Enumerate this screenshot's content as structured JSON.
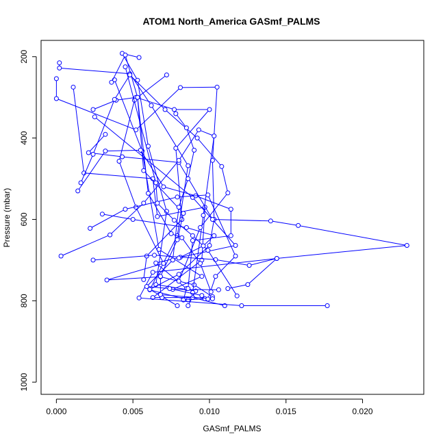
{
  "chart_data": {
    "type": "line",
    "title": "ATOM1 North_America GASmf_PALMS",
    "xlabel": "GASmf_PALMS",
    "ylabel": "Pressure (mbar)",
    "xlim": [
      -0.001,
      0.024
    ],
    "ylim": [
      1030,
      160
    ],
    "y_reversed": true,
    "x_ticks": [
      0.0,
      0.005,
      0.01,
      0.015,
      0.02
    ],
    "x_tick_labels": [
      "0.000",
      "0.005",
      "0.010",
      "0.015",
      "0.020"
    ],
    "y_ticks": [
      200,
      400,
      600,
      800,
      1000
    ],
    "y_tick_labels": [
      "200",
      "400",
      "600",
      "800",
      "1000"
    ],
    "grid": false,
    "series_color": "#0000ff",
    "marker": "open-circle",
    "series": [
      {
        "values": [
          [
            0.0002,
            215
          ],
          [
            0.0002,
            228
          ],
          [
            0.0048,
            242
          ],
          [
            0.0062,
            320
          ],
          [
            0.0086,
            468
          ],
          [
            0.0079,
            640
          ],
          [
            0.0061,
            773
          ],
          [
            0.0086,
            798
          ]
        ]
      },
      {
        "values": [
          [
            0.0054,
            202
          ],
          [
            0.0043,
            192
          ],
          [
            0.0053,
            258
          ],
          [
            0.006,
            420
          ],
          [
            0.0072,
            580
          ],
          [
            0.0065,
            760
          ],
          [
            0.0091,
            776
          ],
          [
            0.0086,
            812
          ]
        ]
      },
      {
        "values": [
          [
            0.0,
            254
          ],
          [
            0.0,
            303
          ],
          [
            0.0052,
            380
          ],
          [
            0.0081,
            276
          ],
          [
            0.0105,
            275
          ],
          [
            0.0102,
            455
          ],
          [
            0.0103,
            600
          ],
          [
            0.01,
            664
          ],
          [
            0.008,
            735
          ],
          [
            0.0061,
            772
          ],
          [
            0.0079,
            812
          ]
        ]
      },
      {
        "values": [
          [
            0.0011,
            275
          ],
          [
            0.0018,
            486
          ],
          [
            0.0063,
            500
          ],
          [
            0.0066,
            593
          ],
          [
            0.0097,
            570
          ],
          [
            0.0095,
            700
          ],
          [
            0.0063,
            792
          ],
          [
            0.0069,
            792
          ],
          [
            0.0089,
            792
          ],
          [
            0.011,
            812
          ]
        ]
      },
      {
        "values": [
          [
            0.0024,
            330
          ],
          [
            0.0039,
            307
          ],
          [
            0.0052,
            300
          ],
          [
            0.0077,
            330
          ],
          [
            0.01,
            330
          ],
          [
            0.0078,
            425
          ],
          [
            0.0082,
            600
          ],
          [
            0.0059,
            690
          ],
          [
            0.0057,
            748
          ]
        ]
      },
      {
        "values": [
          [
            0.0025,
            348
          ],
          [
            0.0089,
            546
          ],
          [
            0.0117,
            664
          ],
          [
            0.0081,
            693
          ],
          [
            0.0065,
            707
          ],
          [
            0.0085,
            770
          ],
          [
            0.0083,
            798
          ],
          [
            0.0097,
            795
          ]
        ]
      },
      {
        "values": [
          [
            0.0032,
            391
          ],
          [
            0.0021,
            436
          ],
          [
            0.0043,
            446
          ],
          [
            0.008,
            460
          ],
          [
            0.0102,
            600
          ],
          [
            0.014,
            604
          ],
          [
            0.0158,
            615
          ],
          [
            0.0229,
            664
          ],
          [
            0.0144,
            696
          ],
          [
            0.0063,
            730
          ],
          [
            0.0054,
            793
          ],
          [
            0.0121,
            812
          ],
          [
            0.0177,
            812
          ]
        ]
      },
      {
        "values": [
          [
            0.0038,
            257
          ],
          [
            0.0056,
            432
          ],
          [
            0.0067,
            674
          ],
          [
            0.0095,
            740
          ],
          [
            0.0076,
            772
          ],
          [
            0.0106,
            773
          ]
        ]
      },
      {
        "values": [
          [
            0.0051,
            307
          ],
          [
            0.0041,
            457
          ],
          [
            0.0052,
            570
          ],
          [
            0.007,
            708
          ],
          [
            0.0033,
            749
          ],
          [
            0.0068,
            741
          ],
          [
            0.009,
            761
          ],
          [
            0.0102,
            790
          ]
        ]
      },
      {
        "values": [
          [
            0.0072,
            245
          ],
          [
            0.0053,
            300
          ],
          [
            0.0057,
            480
          ],
          [
            0.0083,
            585
          ],
          [
            0.0079,
            650
          ],
          [
            0.0068,
            740
          ],
          [
            0.0068,
            785
          ],
          [
            0.0102,
            795
          ]
        ]
      },
      {
        "values": [
          [
            0.0003,
            690
          ],
          [
            0.0035,
            638
          ],
          [
            0.0057,
            560
          ],
          [
            0.008,
            455
          ],
          [
            0.0093,
            380
          ],
          [
            0.0103,
            395
          ],
          [
            0.0096,
            590
          ],
          [
            0.0089,
            780
          ]
        ]
      },
      {
        "values": [
          [
            0.0014,
            530
          ],
          [
            0.0032,
            432
          ],
          [
            0.0055,
            430
          ],
          [
            0.007,
            520
          ],
          [
            0.0091,
            542
          ],
          [
            0.0114,
            575
          ],
          [
            0.0114,
            640
          ],
          [
            0.0089,
            652
          ],
          [
            0.0086,
            770
          ]
        ]
      },
      {
        "values": [
          [
            0.0022,
            622
          ],
          [
            0.0045,
            575
          ],
          [
            0.0079,
            545
          ],
          [
            0.0099,
            540
          ],
          [
            0.0117,
            690
          ],
          [
            0.0104,
            740
          ],
          [
            0.0099,
            796
          ]
        ]
      },
      {
        "values": [
          [
            0.0024,
            700
          ],
          [
            0.0064,
            688
          ],
          [
            0.0104,
            699
          ],
          [
            0.0126,
            713
          ],
          [
            0.0144,
            696
          ],
          [
            0.0125,
            760
          ],
          [
            0.0112,
            770
          ]
        ]
      },
      {
        "values": [
          [
            0.0036,
            263
          ],
          [
            0.0045,
            196
          ],
          [
            0.0053,
            300
          ],
          [
            0.006,
            536
          ],
          [
            0.0075,
            635
          ],
          [
            0.0082,
            645
          ],
          [
            0.0094,
            708
          ],
          [
            0.0101,
            778
          ]
        ]
      },
      {
        "values": [
          [
            0.0045,
            225
          ],
          [
            0.0065,
            510
          ],
          [
            0.0066,
            560
          ],
          [
            0.0077,
            602
          ],
          [
            0.0089,
            640
          ],
          [
            0.0099,
            676
          ],
          [
            0.0118,
            788
          ]
        ]
      },
      {
        "values": [
          [
            0.0016,
            510
          ],
          [
            0.0024,
            440
          ],
          [
            0.0038,
            305
          ],
          [
            0.0048,
            245
          ],
          [
            0.0071,
            330
          ],
          [
            0.0092,
            400
          ],
          [
            0.0108,
            470
          ],
          [
            0.0112,
            535
          ],
          [
            0.0094,
            620
          ],
          [
            0.008,
            752
          ]
        ]
      },
      {
        "values": [
          [
            0.003,
            587
          ],
          [
            0.005,
            600
          ],
          [
            0.0085,
            620
          ],
          [
            0.0103,
            640
          ],
          [
            0.0096,
            665
          ],
          [
            0.008,
            695
          ]
        ]
      },
      {
        "values": [
          [
            0.0078,
            340
          ],
          [
            0.0085,
            375
          ],
          [
            0.009,
            430
          ],
          [
            0.0086,
            500
          ],
          [
            0.008,
            570
          ],
          [
            0.0076,
            700
          ],
          [
            0.0059,
            765
          ],
          [
            0.0074,
            770
          ],
          [
            0.0095,
            787
          ]
        ]
      }
    ]
  }
}
